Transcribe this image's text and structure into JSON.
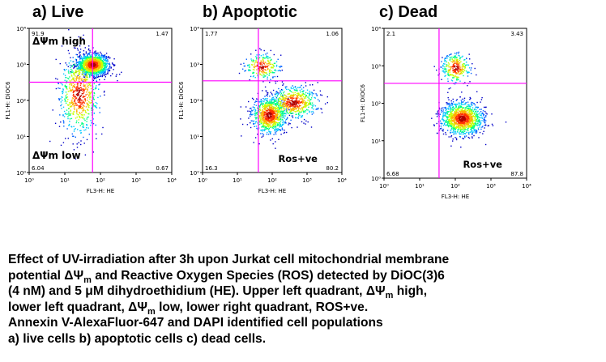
{
  "chart_data": [
    {
      "type": "scatter",
      "title": "a) Live",
      "xlabel": "FL3-H: HE",
      "ylabel": "FL1-H: DiOC6",
      "scale": "log",
      "xlim": [
        1,
        10000
      ],
      "ylim": [
        1,
        10000
      ],
      "x_ticks": [
        "10⁰",
        "10¹",
        "10²",
        "10³",
        "10⁴"
      ],
      "y_ticks": [
        "10⁰",
        "10¹",
        "10²",
        "10³",
        "10⁴"
      ],
      "gate": {
        "x": 60,
        "y": 320
      },
      "quadrant_percent": {
        "upper_left": "91.9",
        "upper_right": "1.47",
        "lower_left": "6.04",
        "lower_right": "0.67"
      },
      "annotations": [
        "ΔΨm high",
        "ΔΨm low"
      ],
      "populations": [
        {
          "x": 60,
          "y": 1000,
          "spread_x": 0.22,
          "spread_y": 0.15,
          "n": 1300
        },
        {
          "x": 25,
          "y": 150,
          "spread_x": 0.28,
          "spread_y": 0.55,
          "n": 700
        }
      ]
    },
    {
      "type": "scatter",
      "title": "b) Apoptotic",
      "xlabel": "FL3-H: HE",
      "ylabel": "FL1-H: DiOC6",
      "scale": "log",
      "xlim": [
        1,
        10000
      ],
      "ylim": [
        1,
        10000
      ],
      "x_ticks": [
        "10⁰",
        "10¹",
        "10²",
        "10³",
        "10⁴"
      ],
      "y_ticks": [
        "10⁰",
        "10¹",
        "10²",
        "10³",
        "10⁴"
      ],
      "gate": {
        "x": 40,
        "y": 350
      },
      "quadrant_percent": {
        "upper_left": "1.77",
        "upper_right": "1.06",
        "lower_left": "16.3",
        "lower_right": "80.2"
      },
      "annotations": [
        "Ros+ve"
      ],
      "populations": [
        {
          "x": 80,
          "y": 40,
          "spread_x": 0.25,
          "spread_y": 0.25,
          "n": 900
        },
        {
          "x": 400,
          "y": 90,
          "spread_x": 0.35,
          "spread_y": 0.22,
          "n": 600
        },
        {
          "x": 50,
          "y": 900,
          "spread_x": 0.25,
          "spread_y": 0.18,
          "n": 250
        }
      ]
    },
    {
      "type": "scatter",
      "title": "c) Dead",
      "xlabel": "FL3-H: HE",
      "ylabel": "FL1-H: DiOC6",
      "scale": "log",
      "xlim": [
        1,
        10000
      ],
      "ylim": [
        1,
        10000
      ],
      "x_ticks": [
        "10⁰",
        "10¹",
        "10²",
        "10³",
        "10⁴"
      ],
      "y_ticks": [
        "10⁰",
        "10¹",
        "10²",
        "10³",
        "10⁴"
      ],
      "gate": {
        "x": 35,
        "y": 340
      },
      "quadrant_percent": {
        "upper_left": "2.1",
        "upper_right": "3.43",
        "lower_left": "6.68",
        "lower_right": "87.8"
      },
      "annotations": [
        "Ros+ve"
      ],
      "populations": [
        {
          "x": 150,
          "y": 40,
          "spread_x": 0.3,
          "spread_y": 0.22,
          "n": 1200
        },
        {
          "x": 100,
          "y": 900,
          "spread_x": 0.2,
          "spread_y": 0.2,
          "n": 300
        }
      ]
    }
  ],
  "caption": {
    "line1": "Effect of UV-irradiation after 3h upon Jurkat cell mitochondrial membrane",
    "line2_a": "potential ΔΨ",
    "line2_sub": "m",
    "line2_b": " and Reactive Oxygen Species (ROS) detected by DiOC(3)6",
    "line3": "(4 nM) and 5 μM dihydroethidium (HE). Upper left quadrant, ΔΨ",
    "line3_sub": "m",
    "line3_b": " high,",
    "line4_a": "lower left quadrant, ΔΨ",
    "line4_sub": "m",
    "line4_b": " low, lower right quadrant, ROS+ve.",
    "line5": "Annexin V-AlexaFluor-647 and DAPI identified cell populations",
    "line6": "a) live cells b) apoptotic cells c) dead cells."
  },
  "colors": {
    "gate": "#ff00ff",
    "density": [
      "#0000c8",
      "#0060ff",
      "#00c8ff",
      "#00ff80",
      "#c8ff00",
      "#ffb000",
      "#ff3000",
      "#b00000"
    ]
  }
}
